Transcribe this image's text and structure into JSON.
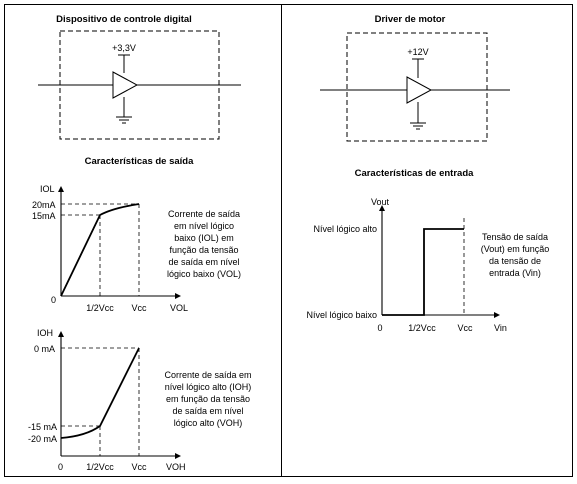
{
  "left": {
    "title": "Dispositivo de controle digital",
    "supply": "+3,3V",
    "section": "Características de saída",
    "iol_chart": {
      "ylabel": "IOL",
      "xlabel": "VOL",
      "y_ticks": [
        "20mA",
        "15mA",
        "0"
      ],
      "x_ticks": [
        "1/2Vcc",
        "Vcc"
      ],
      "caption": [
        "Corrente de saída",
        "em nível lógico",
        "baixo (IOL) em",
        "função da tensão",
        "de saída em nível",
        "lógico baixo (VOL)"
      ]
    },
    "ioh_chart": {
      "ylabel": "IOH",
      "xlabel": "VOH",
      "y_ticks": [
        "0 mA",
        "-15 mA",
        "-20 mA",
        "0"
      ],
      "x_ticks": [
        "1/2Vcc",
        "Vcc"
      ],
      "caption": [
        "Corrente de saída em",
        "nível lógico alto (IOH)",
        "em função da tensão",
        "de saída em nível",
        "lógico alto (VOH)"
      ]
    }
  },
  "right": {
    "title": "Driver de motor",
    "supply": "+12V",
    "section": "Características de entrada",
    "vout_chart": {
      "ylabel": "Vout",
      "xlabel": "Vin",
      "y_ticks": [
        "Nível lógico alto",
        "Nível lógico baixo"
      ],
      "x_ticks": [
        "0",
        "1/2Vcc",
        "Vcc"
      ],
      "caption": [
        "Tensão de saída",
        "(Vout) em função",
        "da tensão de",
        "entrada (Vin)"
      ]
    }
  }
}
